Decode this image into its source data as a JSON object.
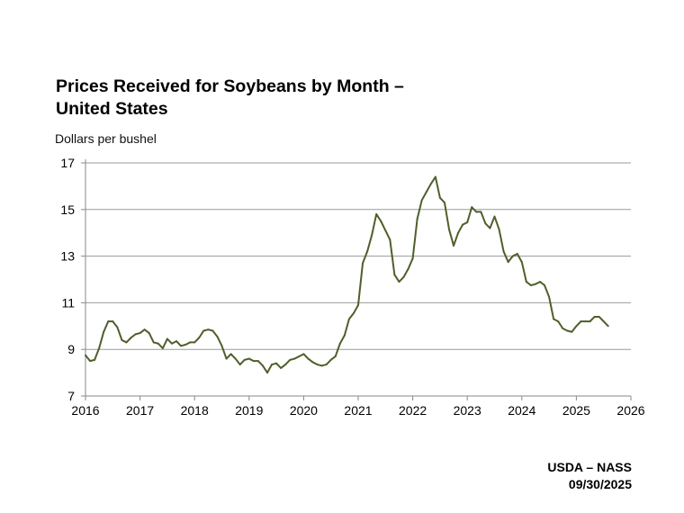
{
  "chart_data": {
    "type": "line",
    "title_line1": "Prices Received for Soybeans by Month –",
    "title_line2": "United States",
    "ylabel": "Dollars per bushel",
    "xlabel": "",
    "xlim": [
      2016,
      2026
    ],
    "ylim": [
      7,
      17
    ],
    "x_ticks": [
      "2016",
      "2017",
      "2018",
      "2019",
      "2020",
      "2021",
      "2022",
      "2023",
      "2024",
      "2025",
      "2026"
    ],
    "y_ticks": [
      "7",
      "9",
      "11",
      "13",
      "15",
      "17"
    ],
    "grid": "horizontal",
    "line_color": "#4f5f2a",
    "series": [
      {
        "x": [
          "2016-01",
          "2016-02",
          "2016-03",
          "2016-04",
          "2016-05",
          "2016-06",
          "2016-07",
          "2016-08",
          "2016-09",
          "2016-10",
          "2016-11",
          "2016-12",
          "2017-01",
          "2017-02",
          "2017-03",
          "2017-04",
          "2017-05",
          "2017-06",
          "2017-07",
          "2017-08",
          "2017-09",
          "2017-10",
          "2017-11",
          "2017-12",
          "2018-01",
          "2018-02",
          "2018-03",
          "2018-04",
          "2018-05",
          "2018-06",
          "2018-07",
          "2018-08",
          "2018-09",
          "2018-10",
          "2018-11",
          "2018-12",
          "2019-01",
          "2019-02",
          "2019-03",
          "2019-04",
          "2019-05",
          "2019-06",
          "2019-07",
          "2019-08",
          "2019-09",
          "2019-10",
          "2019-11",
          "2019-12",
          "2020-01",
          "2020-02",
          "2020-03",
          "2020-04",
          "2020-05",
          "2020-06",
          "2020-07",
          "2020-08",
          "2020-09",
          "2020-10",
          "2020-11",
          "2020-12",
          "2021-01",
          "2021-02",
          "2021-03",
          "2021-04",
          "2021-05",
          "2021-06",
          "2021-07",
          "2021-08",
          "2021-09",
          "2021-10",
          "2021-11",
          "2021-12",
          "2022-01",
          "2022-02",
          "2022-03",
          "2022-04",
          "2022-05",
          "2022-06",
          "2022-07",
          "2022-08",
          "2022-09",
          "2022-10",
          "2022-11",
          "2022-12",
          "2023-01",
          "2023-02",
          "2023-03",
          "2023-04",
          "2023-05",
          "2023-06",
          "2023-07",
          "2023-08",
          "2023-09",
          "2023-10",
          "2023-11",
          "2023-12",
          "2024-01",
          "2024-02",
          "2024-03",
          "2024-04",
          "2024-05",
          "2024-06",
          "2024-07",
          "2024-08",
          "2024-09",
          "2024-10",
          "2024-11",
          "2024-12",
          "2025-01",
          "2025-02",
          "2025-03",
          "2025-04",
          "2025-05",
          "2025-06",
          "2025-07",
          "2025-08"
        ],
        "values": [
          8.75,
          8.5,
          8.55,
          9.05,
          9.75,
          10.2,
          10.2,
          9.95,
          9.4,
          9.3,
          9.5,
          9.65,
          9.7,
          9.85,
          9.7,
          9.3,
          9.25,
          9.05,
          9.45,
          9.25,
          9.35,
          9.15,
          9.2,
          9.3,
          9.3,
          9.5,
          9.8,
          9.85,
          9.8,
          9.55,
          9.15,
          8.6,
          8.8,
          8.6,
          8.35,
          8.55,
          8.6,
          8.5,
          8.5,
          8.3,
          8.0,
          8.35,
          8.4,
          8.2,
          8.35,
          8.55,
          8.6,
          8.7,
          8.8,
          8.6,
          8.45,
          8.35,
          8.3,
          8.35,
          8.55,
          8.7,
          9.25,
          9.6,
          10.3,
          10.55,
          10.9,
          12.7,
          13.2,
          13.9,
          14.8,
          14.5,
          14.1,
          13.7,
          12.2,
          11.9,
          12.1,
          12.45,
          12.9,
          14.6,
          15.4,
          15.75,
          16.1,
          16.4,
          15.5,
          15.3,
          14.15,
          13.45,
          14.0,
          14.35,
          14.45,
          15.1,
          14.9,
          14.9,
          14.4,
          14.2,
          14.7,
          14.15,
          13.2,
          12.75,
          13.0,
          13.1,
          12.75,
          11.9,
          11.75,
          11.8,
          11.9,
          11.75,
          11.25,
          10.3,
          10.2,
          9.9,
          9.8,
          9.75,
          10.0,
          10.2,
          10.2,
          10.2,
          10.4,
          10.4,
          10.2,
          10.0
        ]
      }
    ]
  },
  "source": {
    "line1": "USDA – NASS",
    "line2": "09/30/2025"
  }
}
